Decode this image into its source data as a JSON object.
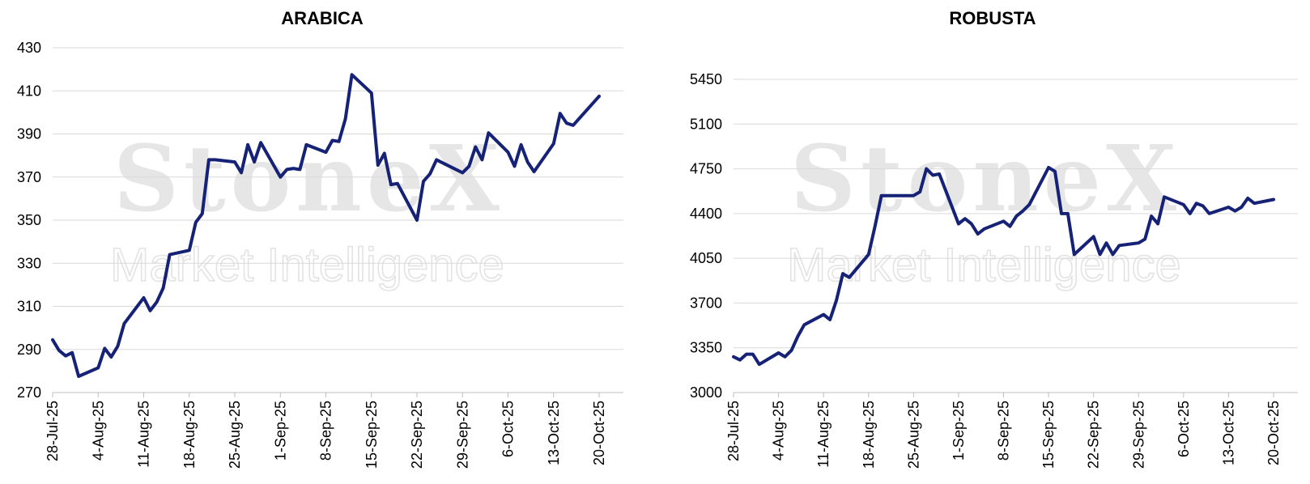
{
  "colors": {
    "line": "#162276",
    "grid": "#d9d9d9"
  },
  "watermark": {
    "brand": "StoneX",
    "tagline": "Market Intelligence",
    "registered": "®"
  },
  "chart_data": [
    {
      "type": "line",
      "title": "ARABICA",
      "xlabel": "",
      "ylabel": "",
      "ylim": [
        270,
        430
      ],
      "yticks": [
        270,
        290,
        310,
        330,
        350,
        370,
        390,
        410,
        430
      ],
      "xticks": [
        "28-Jul-25",
        "4-Aug-25",
        "11-Aug-25",
        "18-Aug-25",
        "25-Aug-25",
        "1-Sep-25",
        "8-Sep-25",
        "15-Sep-25",
        "22-Sep-25",
        "29-Sep-25",
        "6-Oct-25",
        "13-Oct-25",
        "20-Oct-25"
      ],
      "grid": true,
      "series": [
        {
          "x": [
            "2025-07-28",
            "2025-07-29",
            "2025-07-30",
            "2025-07-31",
            "2025-08-01",
            "2025-08-04",
            "2025-08-05",
            "2025-08-06",
            "2025-08-07",
            "2025-08-08",
            "2025-08-11",
            "2025-08-12",
            "2025-08-13",
            "2025-08-14",
            "2025-08-15",
            "2025-08-18",
            "2025-08-19",
            "2025-08-20",
            "2025-08-21",
            "2025-08-22",
            "2025-08-25",
            "2025-08-26",
            "2025-08-27",
            "2025-08-28",
            "2025-08-29",
            "2025-09-01",
            "2025-09-02",
            "2025-09-03",
            "2025-09-04",
            "2025-09-05",
            "2025-09-08",
            "2025-09-09",
            "2025-09-10",
            "2025-09-11",
            "2025-09-12",
            "2025-09-15",
            "2025-09-16",
            "2025-09-17",
            "2025-09-18",
            "2025-09-19",
            "2025-09-22",
            "2025-09-23",
            "2025-09-24",
            "2025-09-25",
            "2025-09-26",
            "2025-09-29",
            "2025-09-30",
            "2025-10-01",
            "2025-10-02",
            "2025-10-03",
            "2025-10-06",
            "2025-10-07",
            "2025-10-08",
            "2025-10-09",
            "2025-10-10",
            "2025-10-13",
            "2025-10-14",
            "2025-10-15",
            "2025-10-16",
            "2025-10-20"
          ],
          "values": [
            294.5,
            289.5,
            287,
            288.5,
            277.5,
            281.5,
            290.5,
            286.5,
            291.5,
            302,
            314,
            308,
            312,
            318.5,
            334,
            336,
            349,
            353,
            378,
            378,
            377,
            372,
            385,
            377,
            386,
            370,
            373.5,
            374,
            373.5,
            385,
            381.5,
            387,
            386.5,
            397,
            417.5,
            409,
            375.5,
            381,
            366.5,
            367,
            350,
            368,
            371.5,
            378,
            376.5,
            372,
            375,
            384,
            378,
            390.5,
            381.5,
            375,
            385,
            377,
            372.5,
            385.5,
            399.5,
            395,
            394,
            407.5
          ]
        }
      ]
    },
    {
      "type": "line",
      "title": "ROBUSTA",
      "xlabel": "",
      "ylabel": "",
      "ylim": [
        3000,
        5450
      ],
      "yticks": [
        3000,
        3350,
        3700,
        4050,
        4400,
        4750,
        5100,
        5450
      ],
      "xticks": [
        "28-Jul-25",
        "4-Aug-25",
        "11-Aug-25",
        "18-Aug-25",
        "25-Aug-25",
        "1-Sep-25",
        "8-Sep-25",
        "15-Sep-25",
        "22-Sep-25",
        "29-Sep-25",
        "6-Oct-25",
        "13-Oct-25",
        "20-Oct-25"
      ],
      "grid": true,
      "series": [
        {
          "x": [
            "2025-07-28",
            "2025-07-29",
            "2025-07-30",
            "2025-07-31",
            "2025-08-01",
            "2025-08-04",
            "2025-08-05",
            "2025-08-06",
            "2025-08-07",
            "2025-08-08",
            "2025-08-11",
            "2025-08-12",
            "2025-08-13",
            "2025-08-14",
            "2025-08-15",
            "2025-08-18",
            "2025-08-19",
            "2025-08-20",
            "2025-08-21",
            "2025-08-22",
            "2025-08-25",
            "2025-08-26",
            "2025-08-27",
            "2025-08-28",
            "2025-08-29",
            "2025-09-01",
            "2025-09-02",
            "2025-09-03",
            "2025-09-04",
            "2025-09-05",
            "2025-09-08",
            "2025-09-09",
            "2025-09-10",
            "2025-09-11",
            "2025-09-12",
            "2025-09-15",
            "2025-09-16",
            "2025-09-17",
            "2025-09-18",
            "2025-09-19",
            "2025-09-22",
            "2025-09-23",
            "2025-09-24",
            "2025-09-25",
            "2025-09-26",
            "2025-09-29",
            "2025-09-30",
            "2025-10-01",
            "2025-10-02",
            "2025-10-03",
            "2025-10-06",
            "2025-10-07",
            "2025-10-08",
            "2025-10-09",
            "2025-10-10",
            "2025-10-13",
            "2025-10-14",
            "2025-10-15",
            "2025-10-16",
            "2025-10-17",
            "2025-10-20"
          ],
          "values": [
            3280,
            3255,
            3300,
            3300,
            3220,
            3310,
            3280,
            3330,
            3440,
            3530,
            3610,
            3570,
            3720,
            3930,
            3900,
            4080,
            4300,
            4540,
            4540,
            4540,
            4540,
            4570,
            4750,
            4700,
            4710,
            4320,
            4360,
            4320,
            4240,
            4280,
            4340,
            4300,
            4380,
            4420,
            4470,
            4760,
            4730,
            4400,
            4400,
            4080,
            4220,
            4080,
            4170,
            4080,
            4150,
            4170,
            4200,
            4380,
            4320,
            4530,
            4470,
            4400,
            4480,
            4460,
            4400,
            4450,
            4420,
            4450,
            4520,
            4480,
            4510
          ]
        }
      ]
    }
  ]
}
